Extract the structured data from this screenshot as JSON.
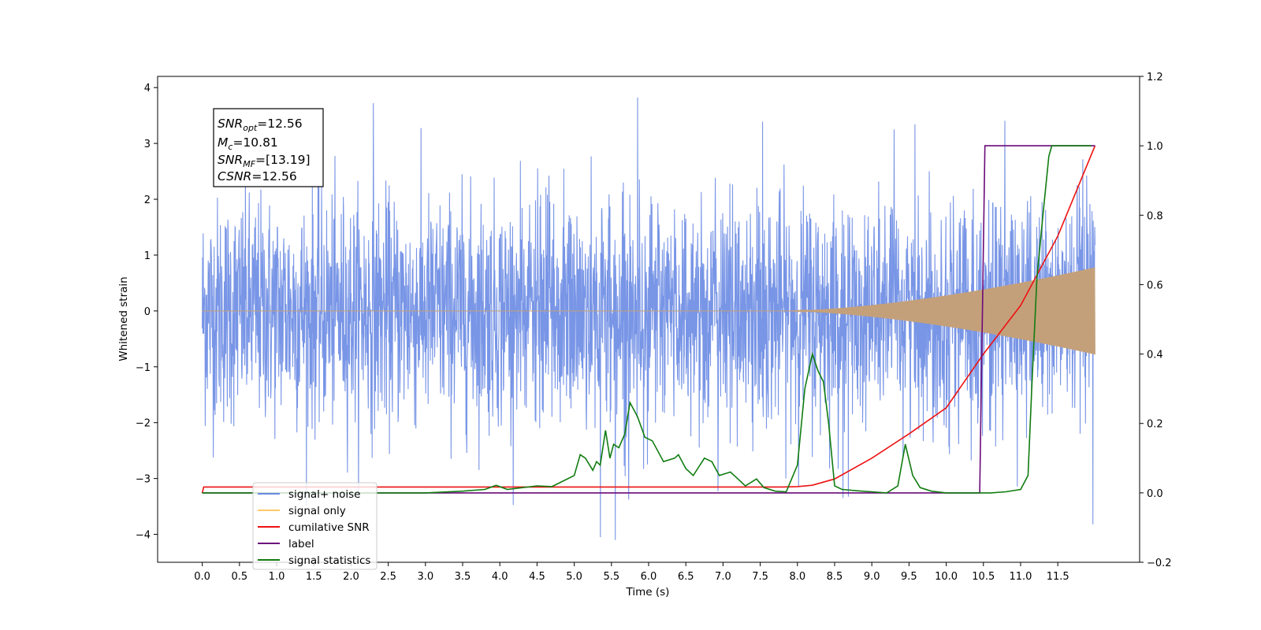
{
  "chart_data": {
    "type": "line",
    "xlabel": "Time (s)",
    "ylabel": "Whitened strain",
    "ylim": [
      -4.5,
      4.2
    ],
    "y2lim": [
      -0.2,
      1.2
    ],
    "xlim": [
      -0.6,
      12.6
    ],
    "x_ticks": [
      "0.0",
      "0.5",
      "1.0",
      "1.5",
      "2.0",
      "2.5",
      "3.0",
      "3.5",
      "4.0",
      "4.5",
      "5.0",
      "5.5",
      "6.0",
      "6.5",
      "7.0",
      "7.5",
      "8.0",
      "8.5",
      "9.0",
      "9.5",
      "10.0",
      "10.5",
      "11.0",
      "11.5"
    ],
    "y_ticks": [
      "4",
      "3",
      "2",
      "1",
      "0",
      "−1",
      "−2",
      "−3",
      "−4"
    ],
    "y2_ticks": [
      "1.2",
      "1.0",
      "0.8",
      "0.6",
      "0.4",
      "0.2",
      "0.0",
      "−0.2"
    ],
    "annotation": {
      "snr_opt": {
        "base": "SNR",
        "sub": "opt",
        "value": "=12.56"
      },
      "mc": {
        "base": "M",
        "sub": "c",
        "value": "=10.81"
      },
      "snr_mf": {
        "base": "SNR",
        "sub": "MF",
        "value": "=[13.19]"
      },
      "csnr": {
        "base": "CSNR",
        "sub": "",
        "value": "=12.56"
      }
    },
    "legend": {
      "placement": "lower-left",
      "entries": [
        {
          "label": "signal+ noise",
          "color": "#6a88e4"
        },
        {
          "label": "signal only",
          "color": "#ffc966"
        },
        {
          "label": "cumilative SNR",
          "color": "#ee1111"
        },
        {
          "label": "label",
          "color": "#6b0a7a"
        },
        {
          "label": "signal statistics",
          "color": "#107c10"
        }
      ]
    },
    "series": [
      {
        "name": "signal+ noise",
        "axis": "left",
        "color": "#7895e6",
        "noise_sigma": 1.0,
        "x_range": [
          0.0,
          12.0
        ],
        "peaks": [
          {
            "x": 5.85,
            "y": 3.82
          },
          {
            "x": 2.3,
            "y": 3.72
          },
          {
            "x": 5.55,
            "y": -4.1
          },
          {
            "x": 5.35,
            "y": -4.05
          },
          {
            "x": 11.97,
            "y": -3.82
          }
        ]
      },
      {
        "name": "signal only",
        "axis": "left",
        "color": "#c4a07a",
        "chirp_start": 7.8,
        "chirp_end": 12.0,
        "end_amplitude": 0.78
      },
      {
        "name": "cumilative SNR",
        "axis": "right",
        "color": "#ee1111",
        "x": [
          0.0,
          0.02,
          7.8,
          8.0,
          8.2,
          8.5,
          9.0,
          9.5,
          10.0,
          10.5,
          11.0,
          11.5,
          12.0
        ],
        "values": [
          0.0,
          0.017,
          0.017,
          0.018,
          0.022,
          0.04,
          0.1,
          0.17,
          0.245,
          0.4,
          0.54,
          0.74,
          1.0
        ]
      },
      {
        "name": "label",
        "axis": "right",
        "color": "#6b0a7a",
        "x": [
          0.0,
          10.45,
          10.52,
          12.0
        ],
        "values": [
          0.0,
          0.0,
          1.0,
          1.0
        ]
      },
      {
        "name": "signal statistics",
        "axis": "right",
        "color": "#107c10",
        "x": [
          0.0,
          3.0,
          3.5,
          3.8,
          3.95,
          4.1,
          4.5,
          4.7,
          5.0,
          5.08,
          5.15,
          5.25,
          5.3,
          5.35,
          5.42,
          5.48,
          5.53,
          5.6,
          5.68,
          5.75,
          5.85,
          5.95,
          6.05,
          6.2,
          6.35,
          6.4,
          6.5,
          6.6,
          6.75,
          6.85,
          6.95,
          7.1,
          7.2,
          7.3,
          7.45,
          7.55,
          7.7,
          7.85,
          8.0,
          8.1,
          8.2,
          8.28,
          8.35,
          8.42,
          8.5,
          8.6,
          8.8,
          9.0,
          9.2,
          9.35,
          9.45,
          9.55,
          9.65,
          9.8,
          10.0,
          10.3,
          10.6,
          10.8,
          11.0,
          11.1,
          11.15,
          11.22,
          11.3,
          11.38,
          11.42,
          11.5,
          11.6,
          11.95
        ],
        "values": [
          0.0,
          0.0,
          0.005,
          0.01,
          0.022,
          0.01,
          0.02,
          0.018,
          0.05,
          0.11,
          0.1,
          0.065,
          0.09,
          0.08,
          0.18,
          0.1,
          0.14,
          0.13,
          0.17,
          0.26,
          0.22,
          0.16,
          0.15,
          0.09,
          0.1,
          0.11,
          0.07,
          0.05,
          0.1,
          0.09,
          0.05,
          0.06,
          0.04,
          0.02,
          0.04,
          0.015,
          0.005,
          0.003,
          0.08,
          0.3,
          0.4,
          0.35,
          0.32,
          0.2,
          0.02,
          0.01,
          0.006,
          0.003,
          0.0,
          0.02,
          0.14,
          0.05,
          0.015,
          0.005,
          0.0,
          0.0,
          0.0,
          0.003,
          0.01,
          0.05,
          0.3,
          0.62,
          0.8,
          0.97,
          1.0,
          1.0,
          1.0,
          1.0
        ]
      }
    ]
  }
}
